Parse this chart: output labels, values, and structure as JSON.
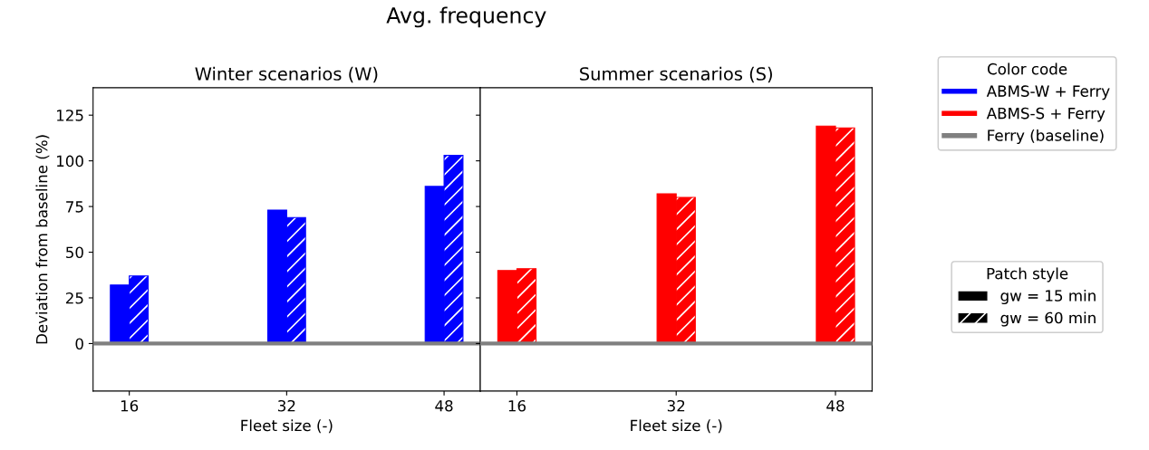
{
  "chart_data": [
    {
      "type": "bar",
      "title": "Avg. frequency",
      "subtitle": "Winter scenarios (W)",
      "xlabel": "Fleet size (-)",
      "ylabel": "Deviation from baseline (%)",
      "categories": [
        "16",
        "32",
        "48"
      ],
      "series": [
        {
          "name": "ABMS-W + Ferry",
          "color": "#0000ff",
          "values": [
            32,
            73,
            86
          ]
        },
        {
          "color": "#0000ff",
          "values": [
            37,
            69,
            103
          ]
        }
      ],
      "ylim": [
        -26,
        140
      ],
      "yticks": [
        0,
        25,
        50,
        75,
        100,
        125
      ],
      "ref_lines": [
        {
          "axis": "y",
          "value": 0,
          "label": "Ferry (baseline)",
          "color": "#808080"
        }
      ],
      "legend": "right",
      "legend_title": "Color code",
      "grid": false
    },
    {
      "type": "bar",
      "subtitle": "Summer scenarios (S)",
      "xlabel": "Fleet size (-)",
      "categories": [
        "16",
        "32",
        "48"
      ],
      "series": [
        {
          "name": "ABMS-S + Ferry",
          "color": "#ff0000",
          "values": [
            40,
            82,
            119
          ]
        },
        {
          "color": "#ff0000",
          "values": [
            41,
            80,
            118
          ]
        }
      ],
      "ylim": [
        -26,
        140
      ],
      "yticks": [
        0,
        25,
        50,
        75,
        100,
        125
      ],
      "tick_labels": "x",
      "ref_lines": [
        {
          "axis": "y",
          "value": 0,
          "color": "#808080"
        }
      ],
      "legend": "right",
      "legend_title": "Patch style",
      "annotations": [
        "gw = 15 min",
        "gw = 60 min"
      ],
      "grid": false
    }
  ]
}
